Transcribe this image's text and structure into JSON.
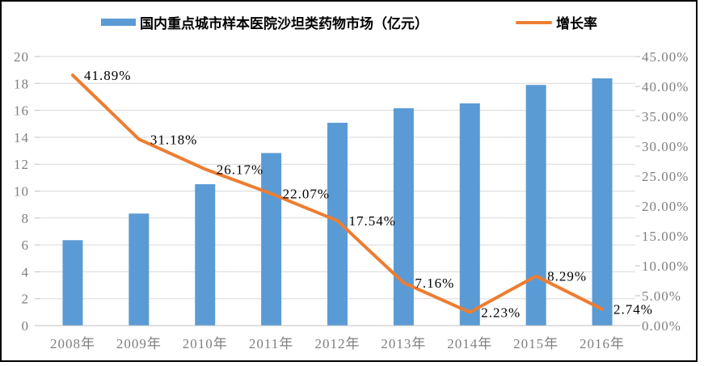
{
  "legend": {
    "bar_label": "国内重点城市样本医院沙坦类药物市场（亿元）",
    "line_label": "增长率"
  },
  "colors": {
    "bar": "#5B9BD5",
    "line": "#ED7D31",
    "gridline": "#D9D9D9",
    "axis_line": "#BFBFBF",
    "axis_text": "#7F7F7F",
    "data_label_text": "#000000",
    "legend_text": "#000000",
    "border": "#000000",
    "background": "#FFFFFF"
  },
  "chart_data": {
    "type": "combo",
    "subtypes": [
      "bar",
      "line"
    ],
    "categories": [
      "2008年",
      "2009年",
      "2010年",
      "2011年",
      "2012年",
      "2013年",
      "2014年",
      "2015年",
      "2016年"
    ],
    "series": [
      {
        "name": "国内重点城市样本医院沙坦类药物市场（亿元）",
        "type": "bar",
        "axis": "left",
        "color": "#5B9BD5",
        "values": [
          6.35,
          8.33,
          10.51,
          12.83,
          15.08,
          16.16,
          16.52,
          17.89,
          18.38
        ]
      },
      {
        "name": "增长率",
        "type": "line",
        "axis": "right",
        "color": "#ED7D31",
        "values": [
          41.89,
          31.18,
          26.17,
          22.07,
          17.54,
          7.16,
          2.23,
          8.29,
          2.74
        ],
        "data_labels": [
          "41.89%",
          "31.18%",
          "26.17%",
          "22.07%",
          "17.54%",
          "7.16%",
          "2.23%",
          "8.29%",
          "2.74%"
        ]
      }
    ],
    "left_axis": {
      "min": 0,
      "max": 20,
      "step": 2,
      "tick_labels": [
        "0",
        "2",
        "4",
        "6",
        "8",
        "10",
        "12",
        "14",
        "16",
        "18",
        "20"
      ]
    },
    "right_axis": {
      "min": 0,
      "max": 45,
      "step": 5,
      "tick_labels": [
        "0.00%",
        "5.00%",
        "10.00%",
        "15.00%",
        "20.00%",
        "25.00%",
        "30.00%",
        "35.00%",
        "40.00%",
        "45.00%"
      ]
    },
    "legend_position": "top",
    "grid": true,
    "title": ""
  }
}
